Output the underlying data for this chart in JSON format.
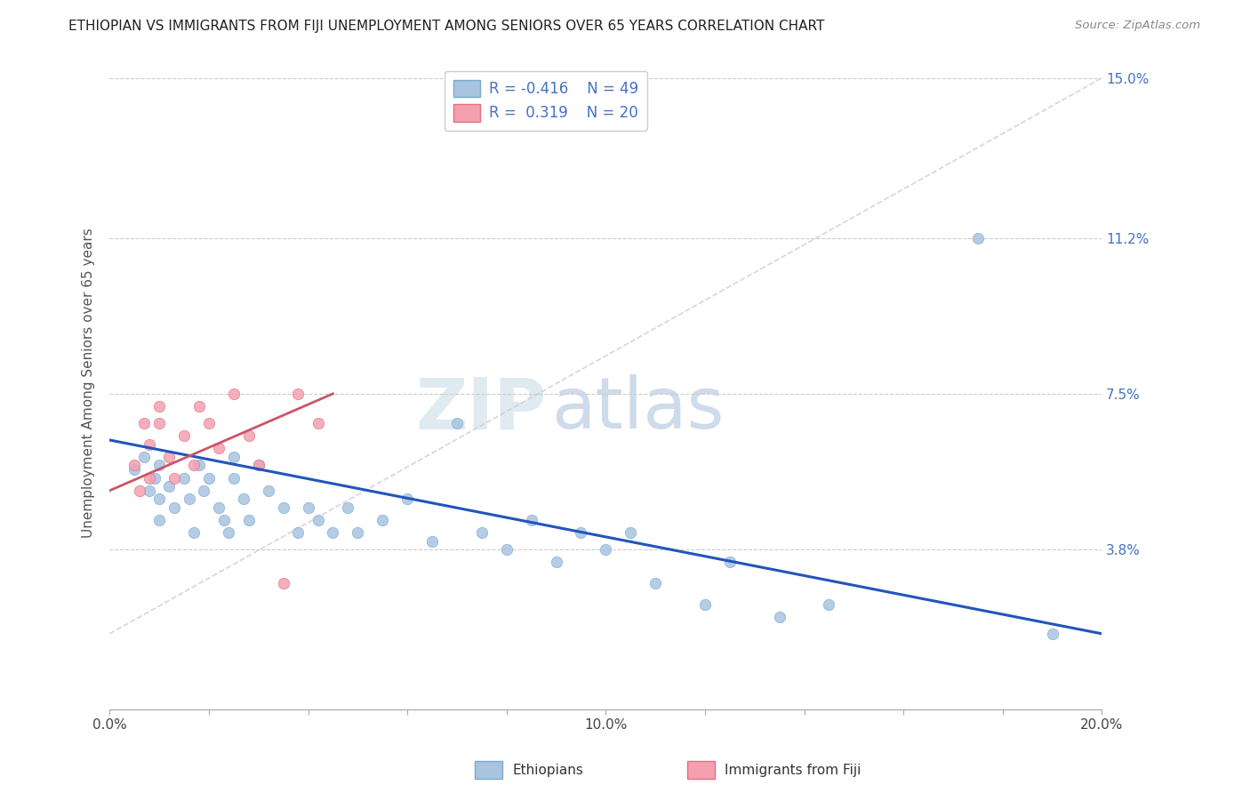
{
  "title": "ETHIOPIAN VS IMMIGRANTS FROM FIJI UNEMPLOYMENT AMONG SENIORS OVER 65 YEARS CORRELATION CHART",
  "source_text": "Source: ZipAtlas.com",
  "ylabel": "Unemployment Among Seniors over 65 years",
  "xlim": [
    0.0,
    0.2
  ],
  "ylim": [
    0.0,
    0.155
  ],
  "ytick_vals": [
    0.0,
    0.038,
    0.075,
    0.112,
    0.15
  ],
  "ytick_labels_right": [
    "",
    "3.8%",
    "7.5%",
    "11.2%",
    "15.0%"
  ],
  "xtick_vals": [
    0.0,
    0.02,
    0.04,
    0.06,
    0.08,
    0.1,
    0.12,
    0.14,
    0.16,
    0.18,
    0.2
  ],
  "xtick_labels": [
    "0.0%",
    "",
    "",
    "",
    "",
    "10.0%",
    "",
    "",
    "",
    "",
    "20.0%"
  ],
  "legend_R1": "-0.416",
  "legend_N1": "49",
  "legend_R2": "0.319",
  "legend_N2": "20",
  "ethiopian_color": "#a8c4e0",
  "ethiopian_edge_color": "#7aaace",
  "fiji_color": "#f4a0b0",
  "fiji_edge_color": "#e07080",
  "trend_line1_color": "#2255bb",
  "trend_line2_color": "#cc5566",
  "trend_dashed_color": "#cccccc",
  "ethiopian_x": [
    0.005,
    0.007,
    0.008,
    0.009,
    0.01,
    0.01,
    0.01,
    0.012,
    0.013,
    0.015,
    0.016,
    0.017,
    0.018,
    0.019,
    0.02,
    0.022,
    0.023,
    0.024,
    0.025,
    0.025,
    0.027,
    0.028,
    0.03,
    0.032,
    0.035,
    0.038,
    0.04,
    0.042,
    0.045,
    0.048,
    0.05,
    0.055,
    0.06,
    0.065,
    0.07,
    0.075,
    0.08,
    0.085,
    0.09,
    0.095,
    0.1,
    0.105,
    0.11,
    0.12,
    0.125,
    0.135,
    0.145,
    0.175,
    0.19
  ],
  "ethiopian_y": [
    0.057,
    0.06,
    0.052,
    0.055,
    0.058,
    0.05,
    0.045,
    0.053,
    0.048,
    0.055,
    0.05,
    0.042,
    0.058,
    0.052,
    0.055,
    0.048,
    0.045,
    0.042,
    0.06,
    0.055,
    0.05,
    0.045,
    0.058,
    0.052,
    0.048,
    0.042,
    0.048,
    0.045,
    0.042,
    0.048,
    0.042,
    0.045,
    0.05,
    0.04,
    0.068,
    0.042,
    0.038,
    0.045,
    0.035,
    0.042,
    0.038,
    0.042,
    0.03,
    0.025,
    0.035,
    0.022,
    0.025,
    0.112,
    0.018
  ],
  "fiji_x": [
    0.005,
    0.006,
    0.007,
    0.008,
    0.008,
    0.01,
    0.01,
    0.012,
    0.013,
    0.015,
    0.017,
    0.018,
    0.02,
    0.022,
    0.025,
    0.028,
    0.03,
    0.035,
    0.038,
    0.042
  ],
  "fiji_y": [
    0.058,
    0.052,
    0.068,
    0.063,
    0.055,
    0.072,
    0.068,
    0.06,
    0.055,
    0.065,
    0.058,
    0.072,
    0.068,
    0.062,
    0.075,
    0.065,
    0.058,
    0.03,
    0.075,
    0.068
  ],
  "eth_trend_x": [
    0.0,
    0.2
  ],
  "eth_trend_y": [
    0.064,
    0.018
  ],
  "fiji_trend_x": [
    0.0,
    0.045
  ],
  "fiji_trend_y": [
    0.052,
    0.075
  ],
  "dashed_trend_x": [
    0.0,
    0.2
  ],
  "dashed_trend_y": [
    0.018,
    0.15
  ],
  "bg_color": "#ffffff",
  "grid_color": "#cccccc",
  "marker_size": 80
}
